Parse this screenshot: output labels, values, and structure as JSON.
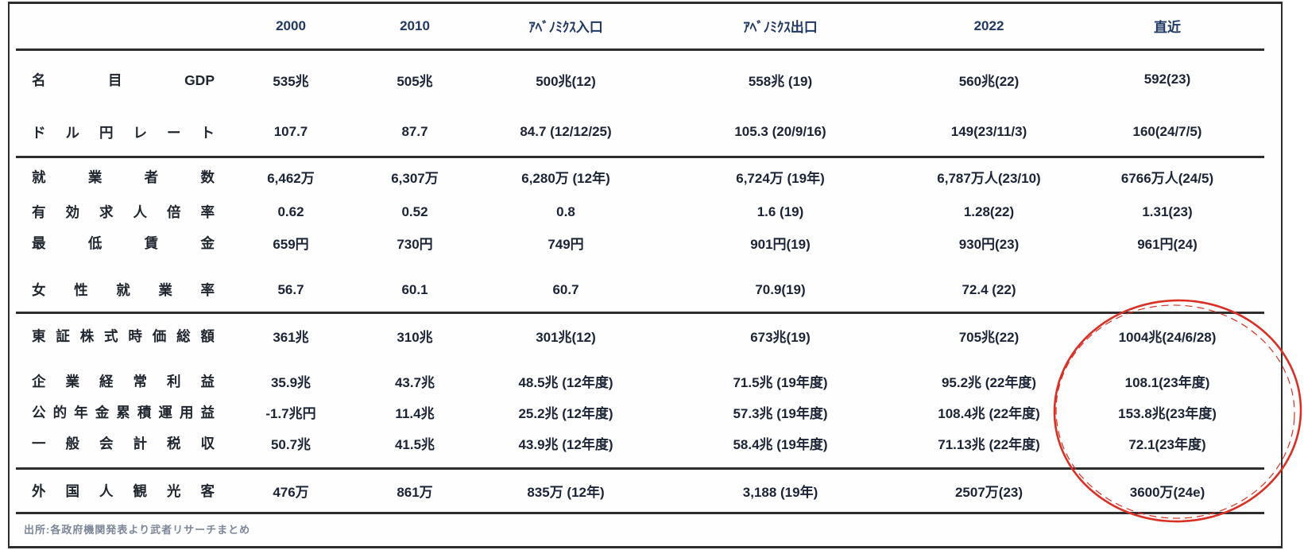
{
  "header": {
    "columns": [
      "",
      "2000",
      "2010",
      "ｱﾍﾞﾉﾐｸｽ入口",
      "ｱﾍﾞﾉﾐｸｽ出口",
      "2022",
      "直近"
    ]
  },
  "table": {
    "sections": [
      {
        "rows": [
          {
            "label": "名目GDP",
            "values": [
              "535兆",
              "505兆",
              "500兆(12)",
              "558兆 (19)",
              "560兆(22)",
              "592(23)"
            ]
          },
          {
            "label": "ドル円レート",
            "values": [
              "107.7",
              "87.7",
              "84.7 (12/12/25)",
              "105.3 (20/9/16)",
              "149(23/11/3)",
              "160(24/7/5)"
            ]
          }
        ]
      },
      {
        "rows": [
          {
            "label": "就業者数",
            "values": [
              "6,462万",
              "6,307万",
              "6,280万 (12年)",
              "6,724万 (19年)",
              "6,787万人(23/10)",
              "6766万人(24/5)"
            ]
          },
          {
            "label": "有効求人倍率",
            "values": [
              "0.62",
              "0.52",
              "0.8",
              "1.6 (19)",
              "1.28(22)",
              "1.31(23)"
            ]
          },
          {
            "label": "最低賃金",
            "values": [
              "659円",
              "730円",
              "749円",
              "901円(19)",
              "930円(23)",
              "961円(24)"
            ]
          },
          {
            "label": "女性就業率",
            "values": [
              "56.7",
              "60.1",
              "60.7",
              "70.9(19)",
              "72.4 (22)",
              ""
            ]
          }
        ]
      },
      {
        "rows": [
          {
            "label": "東証株式時価総額",
            "values": [
              "361兆",
              "310兆",
              "301兆(12)",
              "673兆(19)",
              "705兆(22)",
              "1004兆(24/6/28)"
            ]
          },
          {
            "label": "企業経常利益",
            "values": [
              "35.9兆",
              "43.7兆",
              "48.5兆 (12年度)",
              "71.5兆 (19年度)",
              "95.2兆 (22年度)",
              "108.1(23年度)"
            ]
          },
          {
            "label": "公的年金累積運用益",
            "values": [
              "-1.7兆円",
              "11.4兆",
              "25.2兆 (12年度)",
              "57.3兆 (19年度)",
              "108.4兆 (22年度)",
              "153.8兆(23年度)"
            ]
          },
          {
            "label": "一般会計税収",
            "values": [
              "50.7兆",
              "41.5兆",
              "43.9兆 (12年度)",
              "58.4兆 (19年度)",
              "71.13兆 (22年度)",
              "72.1(23年度)"
            ]
          }
        ]
      },
      {
        "rows": [
          {
            "label": "外国人観光客",
            "values": [
              "476万",
              "861万",
              "835万 (12年)",
              "3,188 (19年)",
              "2507万(23)",
              "3600万(24e)"
            ]
          }
        ]
      }
    ]
  },
  "footer": {
    "source": "出所:各政府機関発表より武者リサーチまとめ"
  },
  "annotation": {
    "highlight_column": "直近"
  },
  "colors": {
    "header_text": "#1f3864",
    "body_text": "#1b2437",
    "border": "#2e2e2e",
    "highlight_circle": "#d93025",
    "source_text": "#7b8799"
  }
}
